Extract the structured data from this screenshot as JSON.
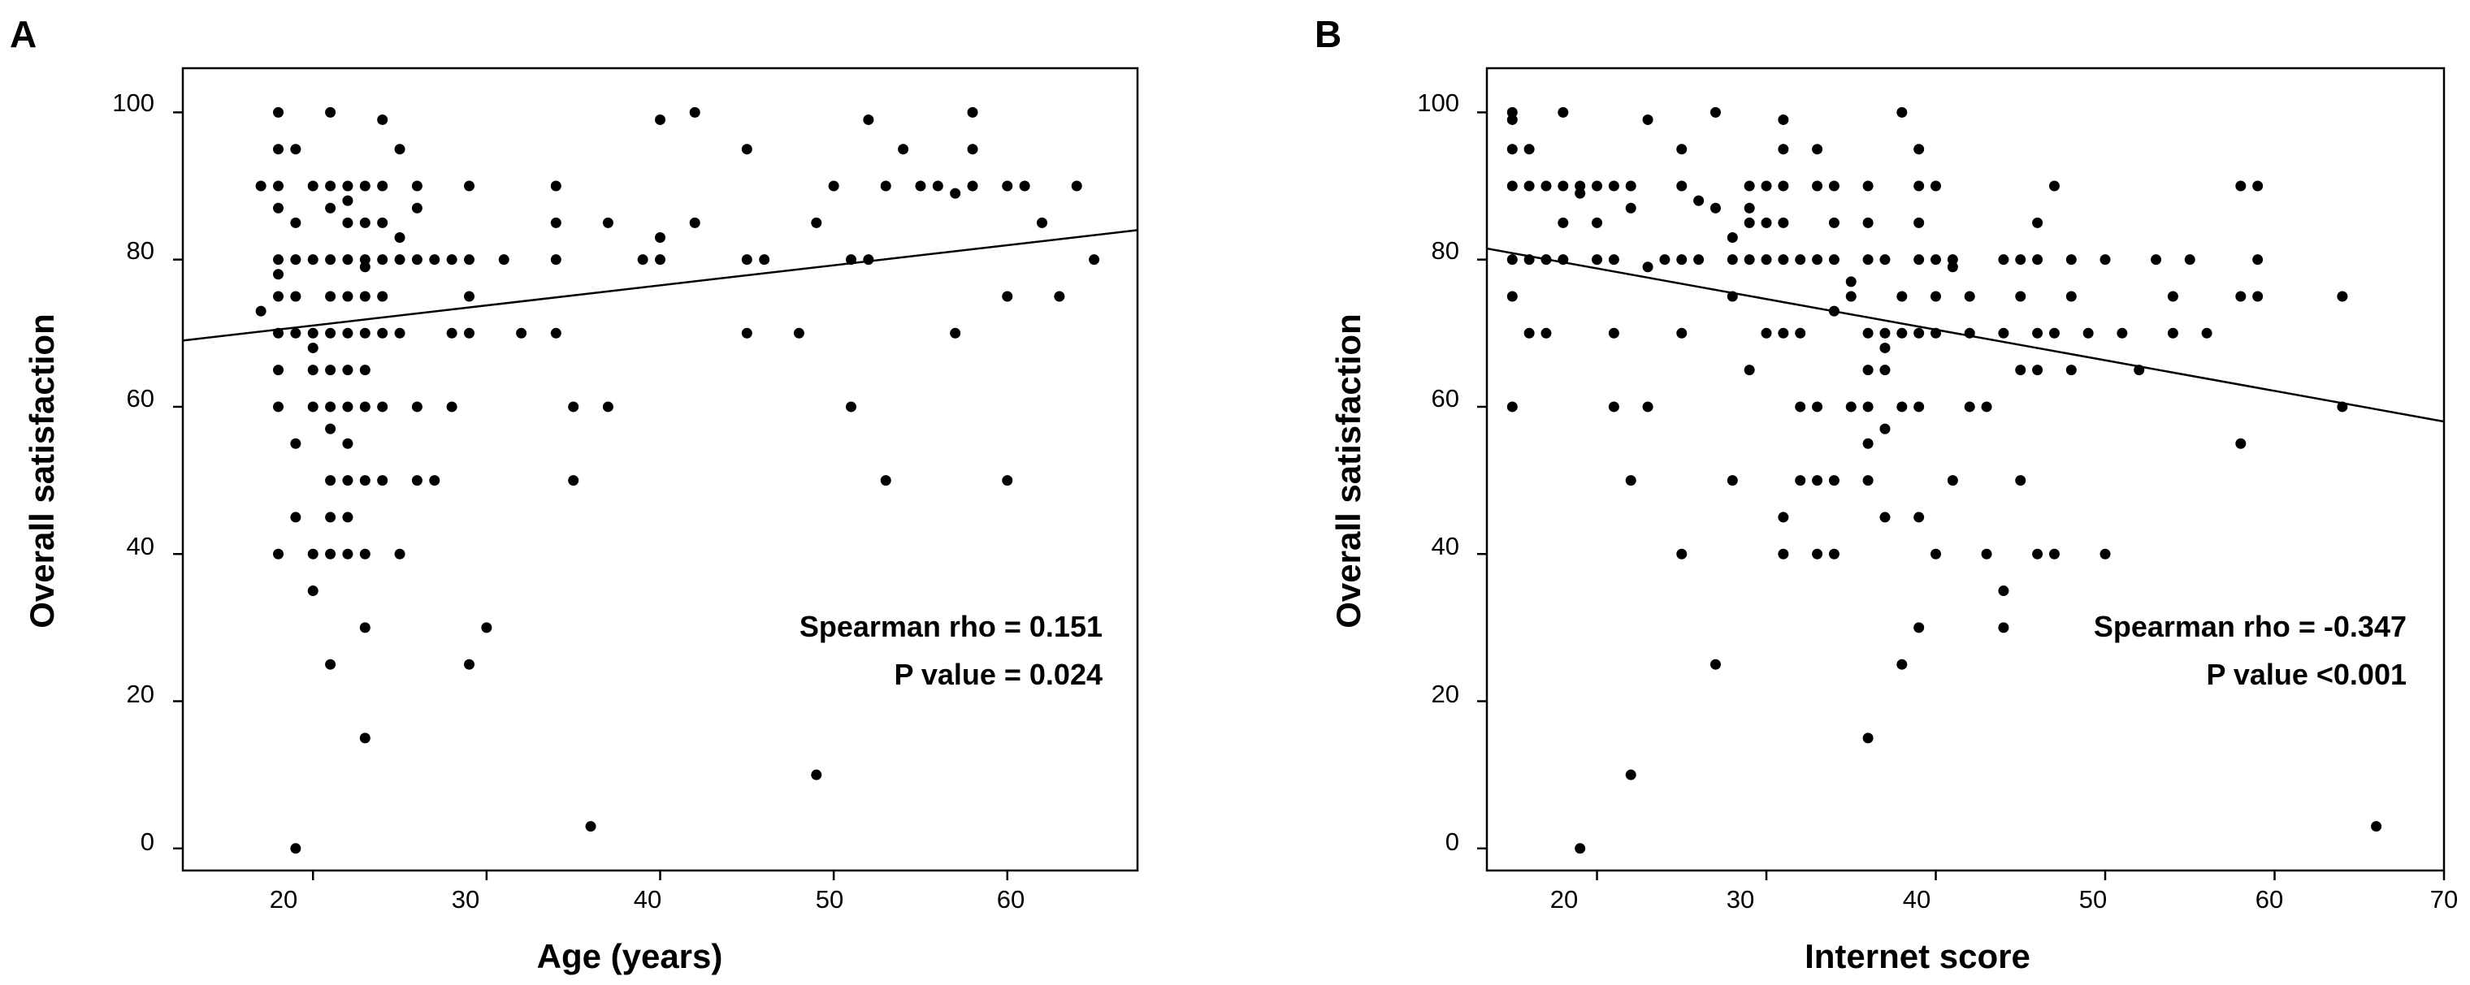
{
  "chart_data": [
    {
      "type": "scatter",
      "panel_label": "A",
      "title": "",
      "xlabel": "Age (years)",
      "ylabel": "Overall satisfaction",
      "xlim": [
        12.5,
        67.5
      ],
      "ylim": [
        -3,
        106
      ],
      "xticks": [
        "20",
        "30",
        "40",
        "50",
        "60"
      ],
      "yticks": [
        "0",
        "20",
        "40",
        "60",
        "80",
        "100"
      ],
      "annotations": [
        "Spearman rho = 0.151",
        "P value = 0.024"
      ],
      "fit_line": [
        [
          12.5,
          69
        ],
        [
          67.5,
          84
        ]
      ],
      "grid": false,
      "points": [
        [
          17,
          90
        ],
        [
          17,
          73
        ],
        [
          18,
          100
        ],
        [
          18,
          95
        ],
        [
          18,
          90
        ],
        [
          18,
          87
        ],
        [
          18,
          80
        ],
        [
          18,
          78
        ],
        [
          18,
          75
        ],
        [
          18,
          70
        ],
        [
          18,
          65
        ],
        [
          18,
          60
        ],
        [
          18,
          40
        ],
        [
          19,
          95
        ],
        [
          19,
          85
        ],
        [
          19,
          80
        ],
        [
          19,
          75
        ],
        [
          19,
          70
        ],
        [
          19,
          55
        ],
        [
          19,
          45
        ],
        [
          19,
          0
        ],
        [
          20,
          90
        ],
        [
          20,
          80
        ],
        [
          20,
          70
        ],
        [
          20,
          68
        ],
        [
          20,
          65
        ],
        [
          20,
          60
        ],
        [
          20,
          40
        ],
        [
          20,
          35
        ],
        [
          21,
          100
        ],
        [
          21,
          90
        ],
        [
          21,
          87
        ],
        [
          21,
          80
        ],
        [
          21,
          75
        ],
        [
          21,
          70
        ],
        [
          21,
          65
        ],
        [
          21,
          60
        ],
        [
          21,
          57
        ],
        [
          21,
          50
        ],
        [
          21,
          45
        ],
        [
          21,
          40
        ],
        [
          21,
          25
        ],
        [
          22,
          90
        ],
        [
          22,
          88
        ],
        [
          22,
          85
        ],
        [
          22,
          80
        ],
        [
          22,
          75
        ],
        [
          22,
          70
        ],
        [
          22,
          65
        ],
        [
          22,
          60
        ],
        [
          22,
          55
        ],
        [
          22,
          50
        ],
        [
          22,
          45
        ],
        [
          22,
          40
        ],
        [
          23,
          90
        ],
        [
          23,
          85
        ],
        [
          23,
          80
        ],
        [
          23,
          79
        ],
        [
          23,
          75
        ],
        [
          23,
          70
        ],
        [
          23,
          65
        ],
        [
          23,
          60
        ],
        [
          23,
          50
        ],
        [
          23,
          40
        ],
        [
          23,
          30
        ],
        [
          23,
          15
        ],
        [
          24,
          99
        ],
        [
          24,
          90
        ],
        [
          24,
          85
        ],
        [
          24,
          80
        ],
        [
          24,
          75
        ],
        [
          24,
          70
        ],
        [
          24,
          60
        ],
        [
          24,
          50
        ],
        [
          25,
          95
        ],
        [
          25,
          83
        ],
        [
          25,
          80
        ],
        [
          25,
          70
        ],
        [
          25,
          40
        ],
        [
          26,
          90
        ],
        [
          26,
          87
        ],
        [
          26,
          80
        ],
        [
          26,
          60
        ],
        [
          26,
          50
        ],
        [
          27,
          80
        ],
        [
          27,
          50
        ],
        [
          28,
          80
        ],
        [
          28,
          70
        ],
        [
          28,
          60
        ],
        [
          29,
          90
        ],
        [
          29,
          80
        ],
        [
          29,
          75
        ],
        [
          29,
          70
        ],
        [
          29,
          25
        ],
        [
          30,
          30
        ],
        [
          31,
          80
        ],
        [
          32,
          70
        ],
        [
          34,
          90
        ],
        [
          34,
          85
        ],
        [
          34,
          80
        ],
        [
          34,
          70
        ],
        [
          35,
          60
        ],
        [
          35,
          50
        ],
        [
          36,
          3
        ],
        [
          37,
          85
        ],
        [
          37,
          60
        ],
        [
          39,
          80
        ],
        [
          40,
          99
        ],
        [
          40,
          83
        ],
        [
          40,
          80
        ],
        [
          42,
          100
        ],
        [
          42,
          85
        ],
        [
          45,
          95
        ],
        [
          45,
          80
        ],
        [
          45,
          70
        ],
        [
          46,
          80
        ],
        [
          48,
          70
        ],
        [
          49,
          85
        ],
        [
          49,
          10
        ],
        [
          50,
          90
        ],
        [
          51,
          80
        ],
        [
          51,
          60
        ],
        [
          52,
          99
        ],
        [
          52,
          80
        ],
        [
          53,
          90
        ],
        [
          53,
          50
        ],
        [
          54,
          95
        ],
        [
          55,
          90
        ],
        [
          56,
          90
        ],
        [
          57,
          89
        ],
        [
          57,
          70
        ],
        [
          58,
          100
        ],
        [
          58,
          95
        ],
        [
          58,
          90
        ],
        [
          60,
          90
        ],
        [
          60,
          75
        ],
        [
          60,
          50
        ],
        [
          61,
          90
        ],
        [
          62,
          85
        ],
        [
          63,
          75
        ],
        [
          64,
          90
        ],
        [
          65,
          80
        ]
      ]
    },
    {
      "type": "scatter",
      "panel_label": "B",
      "title": "",
      "xlabel": "Internet score",
      "ylabel": "Overall satisfaction",
      "xlim": [
        13.5,
        70
      ],
      "ylim": [
        -3,
        106
      ],
      "xticks": [
        "20",
        "30",
        "40",
        "50",
        "60",
        "70"
      ],
      "yticks": [
        "0",
        "20",
        "40",
        "60",
        "80",
        "100"
      ],
      "annotations": [
        "Spearman rho = -0.347",
        "P value <0.001"
      ],
      "fit_line": [
        [
          13.5,
          81.5
        ],
        [
          70,
          58
        ]
      ],
      "grid": false,
      "points": [
        [
          15,
          100
        ],
        [
          15,
          99
        ],
        [
          15,
          95
        ],
        [
          15,
          90
        ],
        [
          15,
          80
        ],
        [
          15,
          75
        ],
        [
          15,
          60
        ],
        [
          16,
          95
        ],
        [
          16,
          90
        ],
        [
          16,
          80
        ],
        [
          16,
          70
        ],
        [
          17,
          90
        ],
        [
          17,
          80
        ],
        [
          17,
          70
        ],
        [
          18,
          100
        ],
        [
          18,
          90
        ],
        [
          18,
          85
        ],
        [
          18,
          80
        ],
        [
          19,
          90
        ],
        [
          19,
          89
        ],
        [
          19,
          0
        ],
        [
          20,
          90
        ],
        [
          20,
          85
        ],
        [
          20,
          80
        ],
        [
          21,
          90
        ],
        [
          21,
          80
        ],
        [
          21,
          70
        ],
        [
          21,
          60
        ],
        [
          22,
          90
        ],
        [
          22,
          87
        ],
        [
          22,
          50
        ],
        [
          22,
          10
        ],
        [
          23,
          99
        ],
        [
          23,
          79
        ],
        [
          23,
          60
        ],
        [
          24,
          80
        ],
        [
          25,
          95
        ],
        [
          25,
          90
        ],
        [
          25,
          80
        ],
        [
          25,
          70
        ],
        [
          25,
          40
        ],
        [
          26,
          88
        ],
        [
          26,
          80
        ],
        [
          27,
          100
        ],
        [
          27,
          87
        ],
        [
          27,
          25
        ],
        [
          28,
          83
        ],
        [
          28,
          80
        ],
        [
          28,
          75
        ],
        [
          28,
          50
        ],
        [
          29,
          90
        ],
        [
          29,
          87
        ],
        [
          29,
          85
        ],
        [
          29,
          80
        ],
        [
          29,
          65
        ],
        [
          30,
          90
        ],
        [
          30,
          85
        ],
        [
          30,
          80
        ],
        [
          30,
          70
        ],
        [
          31,
          99
        ],
        [
          31,
          95
        ],
        [
          31,
          90
        ],
        [
          31,
          85
        ],
        [
          31,
          80
        ],
        [
          31,
          70
        ],
        [
          31,
          45
        ],
        [
          31,
          40
        ],
        [
          32,
          80
        ],
        [
          32,
          70
        ],
        [
          32,
          60
        ],
        [
          32,
          50
        ],
        [
          33,
          95
        ],
        [
          33,
          90
        ],
        [
          33,
          80
        ],
        [
          33,
          60
        ],
        [
          33,
          50
        ],
        [
          33,
          40
        ],
        [
          34,
          90
        ],
        [
          34,
          85
        ],
        [
          34,
          80
        ],
        [
          34,
          73
        ],
        [
          34,
          50
        ],
        [
          34,
          40
        ],
        [
          35,
          77
        ],
        [
          35,
          75
        ],
        [
          35,
          60
        ],
        [
          36,
          90
        ],
        [
          36,
          85
        ],
        [
          36,
          80
        ],
        [
          36,
          70
        ],
        [
          36,
          65
        ],
        [
          36,
          60
        ],
        [
          36,
          55
        ],
        [
          36,
          50
        ],
        [
          36,
          15
        ],
        [
          37,
          80
        ],
        [
          37,
          70
        ],
        [
          37,
          68
        ],
        [
          37,
          65
        ],
        [
          37,
          57
        ],
        [
          37,
          45
        ],
        [
          38,
          100
        ],
        [
          38,
          75
        ],
        [
          38,
          70
        ],
        [
          38,
          60
        ],
        [
          38,
          25
        ],
        [
          39,
          95
        ],
        [
          39,
          90
        ],
        [
          39,
          85
        ],
        [
          39,
          80
        ],
        [
          39,
          70
        ],
        [
          39,
          60
        ],
        [
          39,
          45
        ],
        [
          39,
          30
        ],
        [
          40,
          90
        ],
        [
          40,
          80
        ],
        [
          40,
          75
        ],
        [
          40,
          70
        ],
        [
          40,
          40
        ],
        [
          41,
          80
        ],
        [
          41,
          79
        ],
        [
          41,
          50
        ],
        [
          42,
          75
        ],
        [
          42,
          70
        ],
        [
          42,
          60
        ],
        [
          43,
          60
        ],
        [
          43,
          40
        ],
        [
          44,
          80
        ],
        [
          44,
          70
        ],
        [
          44,
          35
        ],
        [
          44,
          30
        ],
        [
          45,
          80
        ],
        [
          45,
          75
        ],
        [
          45,
          65
        ],
        [
          45,
          50
        ],
        [
          46,
          85
        ],
        [
          46,
          80
        ],
        [
          46,
          70
        ],
        [
          46,
          65
        ],
        [
          46,
          40
        ],
        [
          47,
          90
        ],
        [
          47,
          70
        ],
        [
          47,
          40
        ],
        [
          48,
          80
        ],
        [
          48,
          75
        ],
        [
          48,
          65
        ],
        [
          49,
          70
        ],
        [
          50,
          80
        ],
        [
          50,
          40
        ],
        [
          51,
          70
        ],
        [
          52,
          65
        ],
        [
          53,
          80
        ],
        [
          54,
          75
        ],
        [
          54,
          70
        ],
        [
          55,
          80
        ],
        [
          56,
          70
        ],
        [
          58,
          90
        ],
        [
          58,
          75
        ],
        [
          58,
          55
        ],
        [
          59,
          90
        ],
        [
          59,
          80
        ],
        [
          59,
          75
        ],
        [
          64,
          75
        ],
        [
          64,
          60
        ],
        [
          66,
          3
        ]
      ]
    }
  ]
}
